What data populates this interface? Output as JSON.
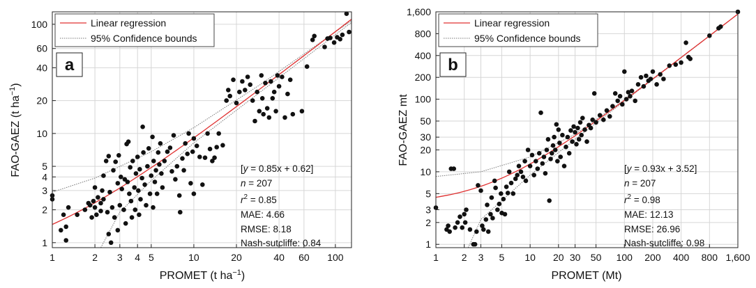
{
  "chart_data": [
    {
      "type": "scatter",
      "panel_label": "a",
      "xlabel": "PROMET (t ha",
      "xlabel_sup": "−1",
      "xlabel_end": ")",
      "ylabel": "FAO-GAEZ (t ha",
      "ylabel_sup": "−1",
      "ylabel_end": ")",
      "xscale": "log",
      "yscale": "log",
      "xlim": [
        1,
        130
      ],
      "ylim": [
        0.9,
        130
      ],
      "x_ticks": [
        1,
        2,
        3,
        4,
        5,
        10,
        20,
        40,
        60,
        100
      ],
      "x_tick_labels": [
        "1",
        "2",
        "3",
        "4",
        "5",
        "10",
        "20",
        "40",
        "60",
        "100"
      ],
      "y_ticks": [
        1,
        2,
        3,
        4,
        5,
        10,
        20,
        40,
        60,
        100
      ],
      "y_tick_labels": [
        "1",
        "2",
        "3",
        "4",
        "5",
        "10",
        "20",
        "40",
        "60",
        "100"
      ],
      "grid": true,
      "legend_position": "top-left",
      "legend": [
        "Linear regression",
        "95% Confidence bounds"
      ],
      "regression": {
        "slope": 0.85,
        "intercept": 0.62,
        "color": "#e03030"
      },
      "confidence_bounds": {
        "upper": [
          [
            1,
            2.9
          ],
          [
            2,
            3.9
          ],
          [
            5,
            6.8
          ],
          [
            10,
            11.3
          ],
          [
            30,
            28.5
          ],
          [
            130,
            108
          ]
        ],
        "lower": [
          [
            2.2,
            0.9
          ],
          [
            3,
            1.9
          ],
          [
            5,
            3.7
          ],
          [
            10,
            8.2
          ],
          [
            30,
            24.4
          ],
          [
            130,
            104
          ]
        ],
        "color": "#777777"
      },
      "stats": [
        "[y = 0.85x + 0.62]",
        "n = 207",
        "r2 = 0.85",
        "MAE: 4.66",
        "RMSE: 8.18",
        "Nash-sutcliffe: 0.84"
      ],
      "points": [
        [
          1.0,
          2.5
        ],
        [
          1.0,
          2.7
        ],
        [
          1.15,
          1.3
        ],
        [
          1.2,
          1.8
        ],
        [
          1.25,
          1.4
        ],
        [
          1.25,
          1.05
        ],
        [
          1.3,
          2.1
        ],
        [
          1.5,
          1.8
        ],
        [
          1.7,
          2.0
        ],
        [
          1.8,
          2.3
        ],
        [
          1.85,
          2.2
        ],
        [
          1.9,
          1.7
        ],
        [
          1.95,
          2.4
        ],
        [
          2.0,
          2.1
        ],
        [
          2.0,
          3.2
        ],
        [
          2.05,
          1.8
        ],
        [
          2.1,
          2.6
        ],
        [
          2.2,
          2.3
        ],
        [
          2.2,
          1.95
        ],
        [
          2.25,
          3.0
        ],
        [
          2.3,
          4.1
        ],
        [
          2.3,
          2.5
        ],
        [
          2.4,
          5.6
        ],
        [
          2.45,
          1.9
        ],
        [
          2.5,
          6.2
        ],
        [
          2.5,
          1.2
        ],
        [
          2.55,
          2.9
        ],
        [
          2.6,
          1.0
        ],
        [
          2.65,
          2.1
        ],
        [
          2.7,
          4.6
        ],
        [
          2.75,
          1.7
        ],
        [
          2.8,
          5.5
        ],
        [
          2.9,
          3.5
        ],
        [
          2.9,
          1.3
        ],
        [
          2.95,
          6.3
        ],
        [
          3.0,
          2.2
        ],
        [
          3.05,
          4.0
        ],
        [
          3.1,
          3.1
        ],
        [
          3.2,
          2.0
        ],
        [
          3.25,
          3.8
        ],
        [
          3.3,
          1.5
        ],
        [
          3.35,
          8.0
        ],
        [
          3.4,
          3.6
        ],
        [
          3.45,
          8.4
        ],
        [
          3.5,
          2.8
        ],
        [
          3.55,
          4.9
        ],
        [
          3.6,
          2.4
        ],
        [
          3.65,
          1.7
        ],
        [
          3.7,
          5.6
        ],
        [
          3.8,
          3.2
        ],
        [
          3.85,
          2.0
        ],
        [
          3.9,
          4.3
        ],
        [
          4.0,
          6.1
        ],
        [
          4.05,
          3.0
        ],
        [
          4.1,
          1.8
        ],
        [
          4.15,
          4.7
        ],
        [
          4.2,
          2.5
        ],
        [
          4.3,
          3.9
        ],
        [
          4.35,
          11.5
        ],
        [
          4.4,
          6.7
        ],
        [
          4.5,
          3.4
        ],
        [
          4.6,
          2.2
        ],
        [
          4.7,
          5.0
        ],
        [
          4.8,
          7.3
        ],
        [
          4.9,
          2.8
        ],
        [
          5.0,
          4.1
        ],
        [
          5.1,
          9.3
        ],
        [
          5.15,
          2.1
        ],
        [
          5.2,
          5.6
        ],
        [
          5.3,
          3.6
        ],
        [
          5.4,
          4.6
        ],
        [
          5.5,
          2.8
        ],
        [
          5.6,
          6.7
        ],
        [
          5.7,
          5.2
        ],
        [
          5.8,
          8.1
        ],
        [
          5.9,
          4.3
        ],
        [
          6.0,
          3.2
        ],
        [
          6.2,
          5.6
        ],
        [
          6.5,
          6.8
        ],
        [
          6.8,
          7.4
        ],
        [
          7.0,
          4.5
        ],
        [
          7.2,
          9.6
        ],
        [
          7.4,
          3.8
        ],
        [
          7.6,
          5.0
        ],
        [
          7.9,
          2.7
        ],
        [
          8.0,
          1.9
        ],
        [
          8.3,
          5.9
        ],
        [
          8.5,
          4.6
        ],
        [
          8.7,
          8.1
        ],
        [
          9.0,
          6.5
        ],
        [
          9.2,
          10.0
        ],
        [
          9.5,
          3.5
        ],
        [
          9.8,
          6.8
        ],
        [
          10.0,
          9.0
        ],
        [
          10.0,
          2.8
        ],
        [
          10.5,
          7.7
        ],
        [
          11.0,
          6.1
        ],
        [
          11.5,
          3.4
        ],
        [
          12.0,
          6.0
        ],
        [
          12.5,
          10.0
        ],
        [
          13.0,
          7.2
        ],
        [
          13.5,
          5.6
        ],
        [
          14.0,
          6.0
        ],
        [
          14.5,
          7.5
        ],
        [
          15.0,
          10.0
        ],
        [
          16.0,
          7.8
        ],
        [
          17.0,
          20.0
        ],
        [
          17.5,
          25.0
        ],
        [
          18.0,
          22.0
        ],
        [
          19.0,
          31.0
        ],
        [
          20.0,
          19.0
        ],
        [
          21.0,
          24.0
        ],
        [
          22.0,
          30.0
        ],
        [
          23.0,
          25.0
        ],
        [
          24.0,
          33.0
        ],
        [
          25.0,
          28.0
        ],
        [
          26.0,
          20.0
        ],
        [
          27.0,
          13.0
        ],
        [
          28.0,
          24.0
        ],
        [
          29.0,
          16.0
        ],
        [
          30.0,
          34.0
        ],
        [
          30.5,
          21.0
        ],
        [
          31.0,
          15.0
        ],
        [
          32.0,
          29.0
        ],
        [
          33.0,
          17.0
        ],
        [
          34.0,
          14.0
        ],
        [
          35.0,
          30.0
        ],
        [
          36.0,
          21.0
        ],
        [
          37.0,
          24.0
        ],
        [
          38.0,
          16.0
        ],
        [
          39.0,
          34.0
        ],
        [
          40.0,
          27.0
        ],
        [
          42.0,
          33.0
        ],
        [
          44.0,
          14.0
        ],
        [
          46.0,
          23.0
        ],
        [
          48.0,
          31.0
        ],
        [
          50.0,
          15.0
        ],
        [
          58.0,
          16.0
        ],
        [
          63.0,
          41.0
        ],
        [
          69.0,
          72.0
        ],
        [
          71.0,
          78.0
        ],
        [
          84.0,
          62.0
        ],
        [
          88.0,
          74.0
        ],
        [
          92.0,
          75.0
        ],
        [
          98.0,
          68.0
        ],
        [
          103.0,
          76.0
        ],
        [
          108.0,
          73.0
        ],
        [
          112.0,
          80.0
        ],
        [
          120.0,
          125.0
        ],
        [
          125.0,
          85.0
        ]
      ]
    },
    {
      "type": "scatter",
      "panel_label": "b",
      "xlabel": "PROMET (Mt)",
      "ylabel": "FAO-GAEZ mt",
      "xscale": "log",
      "yscale": "log",
      "xlim": [
        1,
        1600
      ],
      "ylim": [
        0.9,
        1600
      ],
      "x_ticks": [
        1,
        2,
        3,
        5,
        10,
        20,
        30,
        50,
        100,
        200,
        400,
        800,
        1600
      ],
      "x_tick_labels": [
        "1",
        "2",
        "3",
        "5",
        "10",
        "20",
        "30",
        "50",
        "100",
        "200",
        "400",
        "800",
        "1,600"
      ],
      "y_ticks": [
        1,
        2,
        3,
        5,
        10,
        20,
        30,
        50,
        100,
        200,
        400,
        800,
        1600
      ],
      "y_tick_labels": [
        "1",
        "2",
        "3",
        "5",
        "10",
        "20",
        "30",
        "50",
        "100",
        "200",
        "400",
        "800",
        "1,600"
      ],
      "grid": true,
      "legend_position": "top-left",
      "legend": [
        "Linear regression",
        "95% Confidence bounds"
      ],
      "regression": {
        "slope": 0.93,
        "intercept": 3.52,
        "color": "#e03030"
      },
      "confidence_bounds": {
        "upper": [
          [
            1,
            8.6
          ],
          [
            3,
            10.0
          ],
          [
            10,
            16.0
          ],
          [
            30,
            33.0
          ],
          [
            100,
            98.0
          ],
          [
            400,
            376.0
          ],
          [
            1600,
            1490.0
          ]
        ],
        "lower": [
          [
            2.2,
            0.9
          ],
          [
            3,
            2.2
          ],
          [
            5,
            4.0
          ],
          [
            10,
            9.0
          ],
          [
            30,
            28.0
          ],
          [
            100,
            94.0
          ],
          [
            400,
            372.0
          ],
          [
            1600,
            1486.0
          ]
        ],
        "color": "#777777"
      },
      "stats": [
        "[y = 0.93x + 3.52]",
        "n = 207",
        "r2 = 0.98",
        "MAE: 12.13",
        "RMSE: 26.96",
        "Nash-sutcliffe: 0.98"
      ],
      "points": [
        [
          1.0,
          3.2
        ],
        [
          1.3,
          1.6
        ],
        [
          1.35,
          1.8
        ],
        [
          1.4,
          1.5
        ],
        [
          1.45,
          11.0
        ],
        [
          1.55,
          11.0
        ],
        [
          1.6,
          1.7
        ],
        [
          1.7,
          2.0
        ],
        [
          1.8,
          2.4
        ],
        [
          1.9,
          1.7
        ],
        [
          2.0,
          2.6
        ],
        [
          2.05,
          2.0
        ],
        [
          2.1,
          3.0
        ],
        [
          2.3,
          1.6
        ],
        [
          2.5,
          1.0
        ],
        [
          2.6,
          1.0
        ],
        [
          2.7,
          1.5
        ],
        [
          2.8,
          6.5
        ],
        [
          3.0,
          5.5
        ],
        [
          3.1,
          1.8
        ],
        [
          3.2,
          1.6
        ],
        [
          3.4,
          2.2
        ],
        [
          3.5,
          3.5
        ],
        [
          3.6,
          1.5
        ],
        [
          3.8,
          2.6
        ],
        [
          3.9,
          4.4
        ],
        [
          4.0,
          2.3
        ],
        [
          4.2,
          7.5
        ],
        [
          4.3,
          6.0
        ],
        [
          4.5,
          3.0
        ],
        [
          4.7,
          3.6
        ],
        [
          4.9,
          5.0
        ],
        [
          5.0,
          2.7
        ],
        [
          5.2,
          4.2
        ],
        [
          5.4,
          2.6
        ],
        [
          5.6,
          6.2
        ],
        [
          5.8,
          5.1
        ],
        [
          6.0,
          10.0
        ],
        [
          6.3,
          7.0
        ],
        [
          6.6,
          5.0
        ],
        [
          7.0,
          8.0
        ],
        [
          7.3,
          9.0
        ],
        [
          7.6,
          12.0
        ],
        [
          8.0,
          10.0
        ],
        [
          8.4,
          8.5
        ],
        [
          8.8,
          14.0
        ],
        [
          9.0,
          7.5
        ],
        [
          9.5,
          20.0
        ],
        [
          10.0,
          12.0
        ],
        [
          10.5,
          17.0
        ],
        [
          11.0,
          9.0
        ],
        [
          11.5,
          14.0
        ],
        [
          12.0,
          11.0
        ],
        [
          12.5,
          18.0
        ],
        [
          13.0,
          65.0
        ],
        [
          13.5,
          13.0
        ],
        [
          14.0,
          16.0
        ],
        [
          14.5,
          9.5
        ],
        [
          15.0,
          20.0
        ],
        [
          15.5,
          28.0
        ],
        [
          16.0,
          4.0
        ],
        [
          16.5,
          15.0
        ],
        [
          17.0,
          18.0
        ],
        [
          17.5,
          23.0
        ],
        [
          18.0,
          30.0
        ],
        [
          18.5,
          20.0
        ],
        [
          19.0,
          45.0
        ],
        [
          19.5,
          14.0
        ],
        [
          20.0,
          38.0
        ],
        [
          20.5,
          25.0
        ],
        [
          21.0,
          16.0
        ],
        [
          22.0,
          32.0
        ],
        [
          23.0,
          12.0
        ],
        [
          24.0,
          22.0
        ],
        [
          25.0,
          30.0
        ],
        [
          26.0,
          18.0
        ],
        [
          27.0,
          37.0
        ],
        [
          28.0,
          26.0
        ],
        [
          29.0,
          42.0
        ],
        [
          30.0,
          35.0
        ],
        [
          31.0,
          24.0
        ],
        [
          32.0,
          40.0
        ],
        [
          33.0,
          28.0
        ],
        [
          34.0,
          48.0
        ],
        [
          35.0,
          32.0
        ],
        [
          36.0,
          55.0
        ],
        [
          38.0,
          38.0
        ],
        [
          40.0,
          26.0
        ],
        [
          42.0,
          44.0
        ],
        [
          44.0,
          40.0
        ],
        [
          46.0,
          52.0
        ],
        [
          48.0,
          120.0
        ],
        [
          50.0,
          48.0
        ],
        [
          55.0,
          60.0
        ],
        [
          60.0,
          52.0
        ],
        [
          65.0,
          70.0
        ],
        [
          70.0,
          58.0
        ],
        [
          75.0,
          80.0
        ],
        [
          80.0,
          120.0
        ],
        [
          85.0,
          95.0
        ],
        [
          90.0,
          110.0
        ],
        [
          95.0,
          85.0
        ],
        [
          100.0,
          240.0
        ],
        [
          105.0,
          100.0
        ],
        [
          110.0,
          125.0
        ],
        [
          115.0,
          110.0
        ],
        [
          120.0,
          130.0
        ],
        [
          130.0,
          95.0
        ],
        [
          140.0,
          160.0
        ],
        [
          150.0,
          200.0
        ],
        [
          160.0,
          150.0
        ],
        [
          170.0,
          210.0
        ],
        [
          180.0,
          180.0
        ],
        [
          190.0,
          190.0
        ],
        [
          200.0,
          240.0
        ],
        [
          220.0,
          160.0
        ],
        [
          240.0,
          220.0
        ],
        [
          260.0,
          190.0
        ],
        [
          300.0,
          290.0
        ],
        [
          350.0,
          300.0
        ],
        [
          400.0,
          320.0
        ],
        [
          450.0,
          600.0
        ],
        [
          480.0,
          380.0
        ],
        [
          500.0,
          360.0
        ],
        [
          800.0,
          750.0
        ],
        [
          1000.0,
          950.0
        ],
        [
          1050.0,
          1000.0
        ],
        [
          1600.0,
          1600.0
        ]
      ]
    }
  ]
}
